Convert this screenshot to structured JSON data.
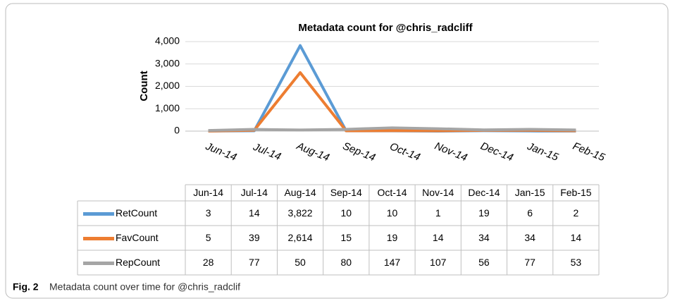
{
  "chart_data": {
    "type": "line",
    "title": "Metadata count for @chris_radcliff",
    "y_label": "Count",
    "categories": [
      "Jun-14",
      "Jul-14",
      "Aug-14",
      "Sep-14",
      "Oct-14",
      "Nov-14",
      "Dec-14",
      "Jan-15",
      "Feb-15"
    ],
    "series": [
      {
        "name": "RetCount",
        "color": "#5b9bd5",
        "values": [
          3,
          14,
          3822,
          10,
          10,
          1,
          19,
          6,
          2
        ],
        "value_labels": [
          "3",
          "14",
          "3,822",
          "10",
          "10",
          "1",
          "19",
          "6",
          "2"
        ]
      },
      {
        "name": "FavCount",
        "color": "#ed7d31",
        "values": [
          5,
          39,
          2614,
          15,
          19,
          14,
          34,
          34,
          14
        ],
        "value_labels": [
          "5",
          "39",
          "2,614",
          "15",
          "19",
          "14",
          "34",
          "34",
          "14"
        ]
      },
      {
        "name": "RepCount",
        "color": "#a5a5a5",
        "values": [
          28,
          77,
          50,
          80,
          147,
          107,
          56,
          77,
          53
        ]
      }
    ],
    "ylim": [
      0,
      4000
    ],
    "yticks": [
      0,
      {
        "value": 1000,
        "label": "1,000"
      },
      {
        "value": 2000,
        "label": "2,000"
      },
      {
        "value": 3000,
        "label": "3,000"
      },
      {
        "value": 4000,
        "label": "4,000"
      }
    ],
    "grid": true,
    "data_table": true
  },
  "caption": {
    "label": "Fig. 2",
    "text": "Metadata count over time for @chris_radclif"
  }
}
